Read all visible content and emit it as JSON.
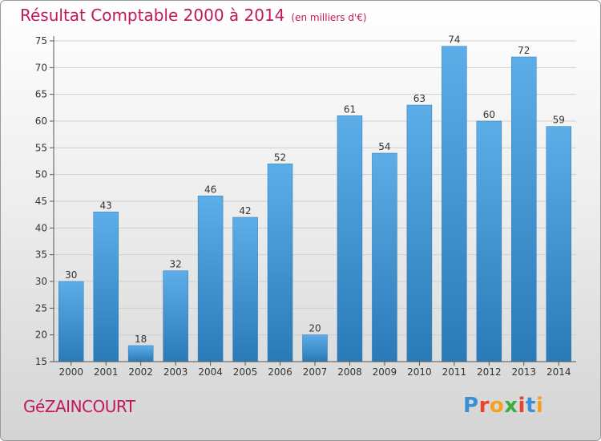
{
  "header": {
    "title": "Résultat Comptable 2000 à 2014",
    "unit": "(en milliers d'€)"
  },
  "footer": {
    "commune": "GéZAINCOURT",
    "brand": "Proxiti",
    "brand_letters": [
      {
        "ch": "P",
        "color": "#3a8fd6"
      },
      {
        "ch": "r",
        "color": "#e8442d"
      },
      {
        "ch": "o",
        "color": "#f5a11b"
      },
      {
        "ch": "x",
        "color": "#3cae3f"
      },
      {
        "ch": "i",
        "color": "#e8442d"
      },
      {
        "ch": "t",
        "color": "#3a8fd6"
      },
      {
        "ch": "i",
        "color": "#f5a11b"
      }
    ]
  },
  "chart_data": {
    "type": "bar",
    "title": "Résultat Comptable 2000 à 2014",
    "subtitle": "(en milliers d'€)",
    "categories": [
      "2000",
      "2001",
      "2002",
      "2003",
      "2004",
      "2005",
      "2006",
      "2007",
      "2008",
      "2009",
      "2010",
      "2011",
      "2012",
      "2013",
      "2014"
    ],
    "values": [
      30,
      43,
      18,
      32,
      46,
      42,
      52,
      20,
      61,
      54,
      63,
      74,
      60,
      72,
      59
    ],
    "ylim": [
      15,
      75
    ],
    "yticks": [
      15,
      20,
      25,
      30,
      35,
      40,
      45,
      50,
      55,
      60,
      65,
      70,
      75
    ],
    "grid": true,
    "data_labels": true,
    "bar_color_top": "#5dade8",
    "bar_color_bottom": "#2a7ab8",
    "grid_color": "#cfcfcf",
    "label_color": "#333333"
  }
}
